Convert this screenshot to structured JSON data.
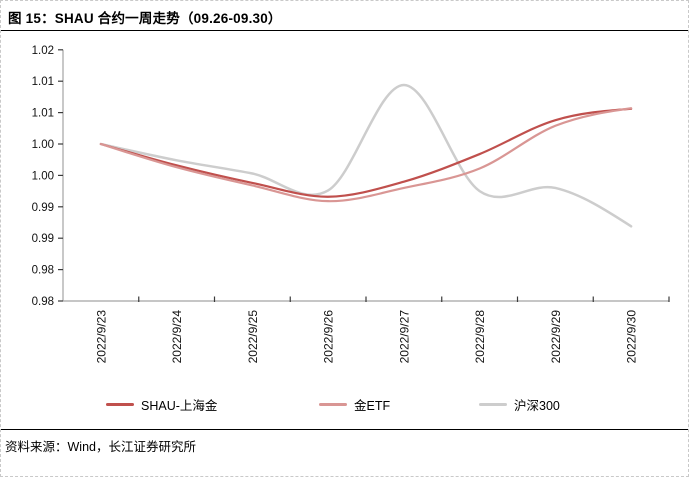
{
  "header": {
    "title": "图 15：SHAU 合约一周走势（09.26-09.30）"
  },
  "footer": {
    "source": "资料来源：Wind，长江证券研究所"
  },
  "chart_data": {
    "type": "line",
    "title": "SHAU 合约一周走势（09.26-09.30）",
    "categories": [
      "2022/9/23",
      "2022/9/24",
      "2022/9/25",
      "2022/9/26",
      "2022/9/27",
      "2022/9/28",
      "2022/9/29",
      "2022/9/30"
    ],
    "series": [
      {
        "name": "SHAU-上海金",
        "color": "#C0504D",
        "values": [
          1.0,
          0.9966,
          0.9938,
          0.9916,
          0.994,
          0.9984,
          1.0038,
          1.0056
        ]
      },
      {
        "name": "金ETF",
        "color": "#D99694",
        "values": [
          1.0,
          0.9963,
          0.9934,
          0.9909,
          0.993,
          0.9961,
          1.0029,
          1.0057
        ]
      },
      {
        "name": "沪深300",
        "color": "#CDCDCD",
        "values": [
          1.0,
          0.9974,
          0.9953,
          0.9926,
          1.0094,
          0.9925,
          0.993,
          0.9869
        ]
      }
    ],
    "draw_order": [
      2,
      0,
      1
    ],
    "smooth": true,
    "grid": false,
    "legend_position": "bottom",
    "y_axis": {
      "min": 0.975,
      "max": 1.015,
      "step": 0.005,
      "tick_labels_top_to_bottom": [
        "1.02",
        "1.01",
        "1.01",
        "1.00",
        "1.00",
        "0.99",
        "0.99",
        "0.98",
        "0.98"
      ]
    },
    "axis_color": "#A3A3A3",
    "tick_color": "#3a3a3a"
  }
}
